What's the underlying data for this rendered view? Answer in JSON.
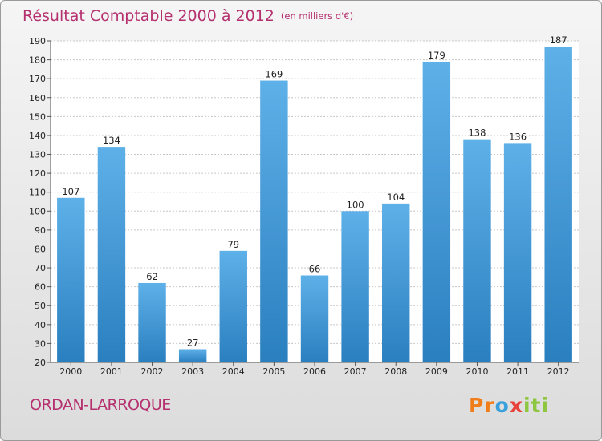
{
  "header": {
    "title": "Résultat Comptable 2000 à 2012",
    "subtitle": "(en milliers d'€)"
  },
  "footer": {
    "commune": "ORDAN-LARROQUE",
    "logo_parts": [
      "Pr",
      "o",
      "x",
      "iti"
    ]
  },
  "colors": {
    "bar_light": "#5eb0e8",
    "bar_dark": "#2a7fbf",
    "title": "#b5306e"
  },
  "chart_data": {
    "type": "bar",
    "title": "Résultat Comptable 2000 à 2012",
    "subtitle": "(en milliers d'€)",
    "categories": [
      "2000",
      "2001",
      "2002",
      "2003",
      "2004",
      "2005",
      "2006",
      "2007",
      "2008",
      "2009",
      "2010",
      "2011",
      "2012"
    ],
    "values": [
      107,
      134,
      62,
      27,
      79,
      169,
      66,
      100,
      104,
      179,
      138,
      136,
      187
    ],
    "ylim": [
      20,
      190
    ],
    "yticks": [
      20,
      30,
      40,
      50,
      60,
      70,
      80,
      90,
      100,
      110,
      120,
      130,
      140,
      150,
      160,
      170,
      180,
      190
    ],
    "grid": true,
    "xlabel": "",
    "ylabel": ""
  }
}
